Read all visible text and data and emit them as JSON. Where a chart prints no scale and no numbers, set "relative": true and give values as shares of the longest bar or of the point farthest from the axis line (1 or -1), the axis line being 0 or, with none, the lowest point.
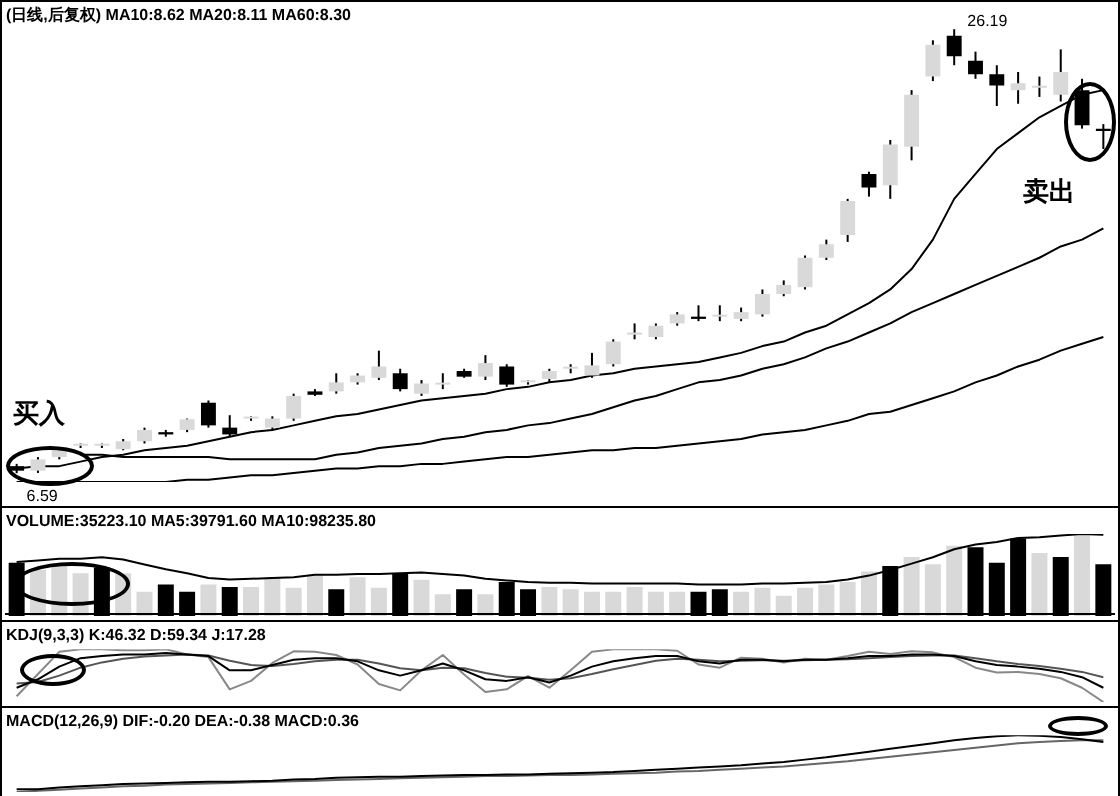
{
  "chart_data": [
    {
      "type": "candlestick",
      "title": "(日线,后复权) MA10:8.62 MA20:8.11 MA60:8.30",
      "tick_labels": false,
      "categories": [
        null,
        null,
        null,
        null,
        null,
        null,
        null,
        null,
        null,
        null,
        null,
        null,
        null,
        null,
        null,
        null,
        null,
        null,
        null,
        null,
        null,
        null,
        null,
        null,
        null,
        null,
        null,
        null,
        null,
        null,
        null,
        null,
        null,
        null,
        null,
        null,
        null,
        null,
        null,
        null,
        null,
        null,
        null,
        null,
        null,
        null,
        null,
        null,
        null,
        null,
        null,
        null
      ],
      "ohlc": [
        [
          6.9,
          7.0,
          6.59,
          6.7
        ],
        [
          6.7,
          7.3,
          6.6,
          7.2
        ],
        [
          7.3,
          7.7,
          7.2,
          7.6
        ],
        [
          7.8,
          7.9,
          7.7,
          7.8
        ],
        [
          7.8,
          7.9,
          7.7,
          7.85
        ],
        [
          7.65,
          8.1,
          7.6,
          8.0
        ],
        [
          8.0,
          8.6,
          7.9,
          8.5
        ],
        [
          8.4,
          8.5,
          8.2,
          8.3
        ],
        [
          8.5,
          9.0,
          8.4,
          8.97
        ],
        [
          9.7,
          9.8,
          8.6,
          8.7
        ],
        [
          8.6,
          9.15,
          8.2,
          8.3
        ],
        [
          9.0,
          9.1,
          8.9,
          9.0
        ],
        [
          8.6,
          9.1,
          8.5,
          9.0
        ],
        [
          9.0,
          10.1,
          8.9,
          10.0
        ],
        [
          10.2,
          10.3,
          10.0,
          10.05
        ],
        [
          10.2,
          11.0,
          10.1,
          10.6
        ],
        [
          10.6,
          11.0,
          10.5,
          10.9
        ],
        [
          10.8,
          12.0,
          10.7,
          11.3
        ],
        [
          11.0,
          11.2,
          10.2,
          10.3
        ],
        [
          10.1,
          10.7,
          10.0,
          10.55
        ],
        [
          10.5,
          11.0,
          10.3,
          10.5
        ],
        [
          11.1,
          11.2,
          10.8,
          10.85
        ],
        [
          10.85,
          11.8,
          10.7,
          11.45
        ],
        [
          11.3,
          11.4,
          10.4,
          10.5
        ],
        [
          10.6,
          10.7,
          10.5,
          10.6
        ],
        [
          10.75,
          11.2,
          10.6,
          11.1
        ],
        [
          11.2,
          11.4,
          11.0,
          11.25
        ],
        [
          10.9,
          11.9,
          10.8,
          11.35
        ],
        [
          11.4,
          12.5,
          11.3,
          12.4
        ],
        [
          12.7,
          13.2,
          12.5,
          12.8
        ],
        [
          12.6,
          13.2,
          12.5,
          13.1
        ],
        [
          13.2,
          13.7,
          13.1,
          13.6
        ],
        [
          13.5,
          14.0,
          13.3,
          13.4
        ],
        [
          13.5,
          14.0,
          13.3,
          13.55
        ],
        [
          13.4,
          13.9,
          13.3,
          13.7
        ],
        [
          13.6,
          14.7,
          13.5,
          14.5
        ],
        [
          14.5,
          15.1,
          14.4,
          14.9
        ],
        [
          14.8,
          16.2,
          14.7,
          16.1
        ],
        [
          16.1,
          16.9,
          16.0,
          16.7
        ],
        [
          17.1,
          18.7,
          16.8,
          18.6
        ],
        [
          19.8,
          19.9,
          18.8,
          19.2
        ],
        [
          19.3,
          21.3,
          18.7,
          21.1
        ],
        [
          21.0,
          23.5,
          20.4,
          23.3
        ],
        [
          24.1,
          25.7,
          23.9,
          25.5
        ],
        [
          25.9,
          26.19,
          24.6,
          25.0
        ],
        [
          24.8,
          25.2,
          24.0,
          24.2
        ],
        [
          24.2,
          24.6,
          22.8,
          23.7
        ],
        [
          23.5,
          24.3,
          22.9,
          23.8
        ],
        [
          23.6,
          24.1,
          23.2,
          23.6
        ],
        [
          23.3,
          25.3,
          23.0,
          24.3
        ],
        [
          23.5,
          24.0,
          21.8,
          21.95
        ],
        [
          21.8,
          22.0,
          20.9,
          21.7
        ]
      ],
      "colors": [
        "#000000",
        "#d9d9d9",
        "#d9d9d9",
        "#d9d9d9",
        "#d9d9d9",
        "#d9d9d9",
        "#d9d9d9",
        "#000000",
        "#d9d9d9",
        "#000000",
        "#000000",
        "#d9d9d9",
        "#d9d9d9",
        "#d9d9d9",
        "#000000",
        "#d9d9d9",
        "#d9d9d9",
        "#d9d9d9",
        "#000000",
        "#d9d9d9",
        "#d9d9d9",
        "#000000",
        "#d9d9d9",
        "#000000",
        "#d9d9d9",
        "#d9d9d9",
        "#d9d9d9",
        "#d9d9d9",
        "#d9d9d9",
        "#d9d9d9",
        "#d9d9d9",
        "#d9d9d9",
        "#000000",
        "#d9d9d9",
        "#d9d9d9",
        "#d9d9d9",
        "#d9d9d9",
        "#d9d9d9",
        "#d9d9d9",
        "#d9d9d9",
        "#000000",
        "#d9d9d9",
        "#d9d9d9",
        "#d9d9d9",
        "#000000",
        "#000000",
        "#000000",
        "#d9d9d9",
        "#d9d9d9",
        "#d9d9d9",
        "#000000",
        "#000000"
      ],
      "series": [
        {
          "type": "line",
          "color": "#000000",
          "values": [
            6.8,
            6.9,
            6.9,
            7.1,
            7.3,
            7.4,
            7.6,
            7.7,
            7.8,
            8.0,
            8.2,
            8.4,
            8.5,
            8.7,
            8.9,
            9.1,
            9.2,
            9.4,
            9.6,
            9.8,
            9.9,
            10.0,
            10.1,
            10.3,
            10.4,
            10.6,
            10.7,
            10.9,
            11.0,
            11.2,
            11.3,
            11.4,
            11.5,
            11.7,
            11.9,
            12.2,
            12.4,
            12.8,
            13.1,
            13.6,
            14.1,
            14.7,
            15.6,
            16.9,
            18.7,
            19.8,
            20.9,
            21.6,
            22.3,
            22.8,
            23.3,
            23.5
          ]
        },
        {
          "type": "line",
          "color": "#000000",
          "values": [
            null,
            null,
            null,
            7.4,
            7.4,
            7.3,
            7.3,
            7.3,
            7.3,
            7.3,
            7.2,
            7.2,
            7.2,
            7.2,
            7.2,
            7.4,
            7.5,
            7.7,
            7.8,
            7.9,
            8.1,
            8.2,
            8.4,
            8.5,
            8.7,
            8.8,
            9.0,
            9.2,
            9.5,
            9.8,
            10.0,
            10.3,
            10.6,
            10.7,
            10.9,
            11.2,
            11.4,
            11.7,
            12.1,
            12.4,
            12.8,
            13.2,
            13.7,
            14.1,
            14.5,
            14.9,
            15.3,
            15.7,
            16.1,
            16.6,
            16.9,
            17.4
          ]
        },
        {
          "type": "line",
          "color": "#000000",
          "values": [
            6.2,
            6.2,
            6.2,
            6.2,
            6.2,
            6.2,
            6.2,
            6.2,
            6.3,
            6.3,
            6.4,
            6.5,
            6.5,
            6.6,
            6.7,
            6.8,
            6.8,
            6.9,
            6.9,
            7.0,
            7.0,
            7.1,
            7.2,
            7.3,
            7.3,
            7.4,
            7.5,
            7.6,
            7.6,
            7.7,
            7.7,
            7.8,
            7.9,
            8.0,
            8.1,
            8.3,
            8.4,
            8.5,
            8.7,
            8.9,
            9.2,
            9.3,
            9.6,
            9.9,
            10.2,
            10.6,
            10.9,
            11.3,
            11.6,
            12.0,
            12.3,
            12.6
          ]
        }
      ],
      "annotations": [
        "26.19",
        "6.59",
        "买入",
        "卖出"
      ]
    },
    {
      "type": "bar",
      "title": "VOLUME:35223.10 MA5:39791.60 MA10:98235.80",
      "relative": true,
      "categories": [
        null,
        null,
        null,
        null,
        null,
        null,
        null,
        null,
        null,
        null,
        null,
        null,
        null,
        null,
        null,
        null,
        null,
        null,
        null,
        null,
        null,
        null,
        null,
        null,
        null,
        null,
        null,
        null,
        null,
        null,
        null,
        null,
        null,
        null,
        null,
        null,
        null,
        null,
        null,
        null,
        null,
        null,
        null,
        null,
        null,
        null,
        null,
        null,
        null,
        null,
        null,
        null
      ],
      "colors": [
        "#000000",
        "#d9d9d9",
        "#d9d9d9",
        "#d9d9d9",
        "#000000",
        "#d9d9d9",
        "#d9d9d9",
        "#000000",
        "#000000",
        "#d9d9d9",
        "#000000",
        "#d9d9d9",
        "#d9d9d9",
        "#d9d9d9",
        "#d9d9d9",
        "#000000",
        "#d9d9d9",
        "#d9d9d9",
        "#000000",
        "#d9d9d9",
        "#d9d9d9",
        "#000000",
        "#d9d9d9",
        "#000000",
        "#000000",
        "#d9d9d9",
        "#d9d9d9",
        "#d9d9d9",
        "#d9d9d9",
        "#d9d9d9",
        "#d9d9d9",
        "#d9d9d9",
        "#000000",
        "#000000",
        "#d9d9d9",
        "#d9d9d9",
        "#d9d9d9",
        "#d9d9d9",
        "#d9d9d9",
        "#d9d9d9",
        "#d9d9d9",
        "#000000",
        "#d9d9d9",
        "#d9d9d9",
        "#d9d9d9",
        "#000000",
        "#000000",
        "#000000",
        "#d9d9d9",
        "#000000",
        "#d9d9d9",
        "#000000"
      ],
      "values": [
        0.66,
        0.57,
        0.62,
        0.53,
        0.6,
        0.53,
        0.3,
        0.39,
        0.3,
        0.39,
        0.36,
        0.36,
        0.48,
        0.35,
        0.51,
        0.33,
        0.48,
        0.35,
        0.53,
        0.45,
        0.27,
        0.33,
        0.27,
        0.42,
        0.33,
        0.36,
        0.33,
        0.3,
        0.3,
        0.36,
        0.3,
        0.3,
        0.3,
        0.33,
        0.3,
        0.35,
        0.25,
        0.35,
        0.39,
        0.42,
        0.55,
        0.62,
        0.73,
        0.64,
        0.87,
        0.85,
        0.66,
        0.96,
        0.78,
        0.73,
        1,
        0.64
      ]
    },
    {
      "type": "line",
      "relative": true,
      "categories": [
        null,
        null,
        null,
        null,
        null,
        null,
        null,
        null,
        null,
        null,
        null,
        null,
        null,
        null,
        null,
        null,
        null,
        null,
        null,
        null,
        null,
        null,
        null,
        null,
        null,
        null,
        null,
        null,
        null,
        null,
        null,
        null,
        null,
        null,
        null,
        null,
        null,
        null,
        null,
        null,
        null,
        null,
        null,
        null,
        null,
        null,
        null,
        null,
        null,
        null,
        null,
        null
      ],
      "series": [
        {
          "color": "#000000",
          "values": [
            0.65,
            0.67,
            0.69,
            0.69,
            0.71,
            0.68,
            0.62,
            0.56,
            0.51,
            0.45,
            0.43,
            0.44,
            0.45,
            0.46,
            0.49,
            0.49,
            0.5,
            0.5,
            0.51,
            0.52,
            0.5,
            0.48,
            0.44,
            0.42,
            0.4,
            0.39,
            0.39,
            0.38,
            0.38,
            0.38,
            0.38,
            0.38,
            0.37,
            0.37,
            0.37,
            0.38,
            0.38,
            0.39,
            0.4,
            0.43,
            0.48,
            0.55,
            0.63,
            0.71,
            0.81,
            0.87,
            0.9,
            0.95,
            0.96,
            0.98,
            1,
            0.99
          ]
        }
      ]
    },
    {
      "type": "line",
      "title": "KDJ(9,3,3) K:46.32 D:59.34 J:17.28",
      "relative": true,
      "categories": [
        null,
        null,
        null,
        null,
        null,
        null,
        null,
        null,
        null,
        null,
        null,
        null,
        null,
        null,
        null,
        null,
        null,
        null,
        null,
        null,
        null,
        null,
        null,
        null,
        null,
        null,
        null,
        null,
        null,
        null,
        null,
        null,
        null,
        null,
        null,
        null,
        null,
        null,
        null,
        null,
        null,
        null,
        null,
        null,
        null,
        null,
        null,
        null,
        null,
        null,
        null,
        null
      ],
      "series": [
        {
          "color": "#000000",
          "values": [
            0.27,
            0.43,
            0.67,
            0.83,
            0.87,
            0.9,
            0.9,
            0.93,
            0.9,
            0.87,
            0.6,
            0.6,
            0.7,
            0.8,
            0.83,
            0.83,
            0.77,
            0.6,
            0.5,
            0.6,
            0.73,
            0.6,
            0.43,
            0.4,
            0.47,
            0.37,
            0.5,
            0.67,
            0.77,
            0.83,
            0.87,
            0.87,
            0.77,
            0.73,
            0.8,
            0.8,
            0.77,
            0.8,
            0.8,
            0.83,
            0.87,
            0.87,
            0.9,
            0.9,
            0.87,
            0.77,
            0.7,
            0.67,
            0.63,
            0.57,
            0.47,
            0.27
          ]
        },
        {
          "color": "#555555",
          "values": [
            0.35,
            0.38,
            0.5,
            0.65,
            0.75,
            0.82,
            0.86,
            0.88,
            0.9,
            0.88,
            0.78,
            0.7,
            0.68,
            0.72,
            0.77,
            0.8,
            0.8,
            0.73,
            0.64,
            0.6,
            0.65,
            0.64,
            0.55,
            0.48,
            0.46,
            0.42,
            0.45,
            0.53,
            0.62,
            0.7,
            0.78,
            0.82,
            0.8,
            0.77,
            0.78,
            0.79,
            0.78,
            0.79,
            0.8,
            0.81,
            0.83,
            0.85,
            0.87,
            0.88,
            0.88,
            0.83,
            0.77,
            0.72,
            0.68,
            0.63,
            0.57,
            0.47
          ]
        },
        {
          "color": "#888888",
          "values": [
            0.11,
            0.53,
            0.95,
            1,
            1,
            0.98,
            0.98,
            1,
            0.9,
            0.85,
            0.24,
            0.4,
            0.74,
            0.96,
            0.95,
            0.89,
            0.71,
            0.34,
            0.22,
            0.6,
            0.89,
            0.52,
            0.19,
            0.24,
            0.49,
            0.27,
            0.6,
            0.95,
            1,
            1,
            1,
            0.97,
            0.71,
            0.65,
            0.84,
            0.82,
            0.75,
            0.82,
            0.8,
            0.87,
            0.95,
            0.91,
            0.96,
            0.94,
            0.85,
            0.65,
            0.56,
            0.57,
            0.53,
            0.45,
            0.27,
            0
          ]
        }
      ]
    },
    {
      "type": "line",
      "title": "MACD(12,26,9) DIF:-0.20 DEA:-0.38 MACD:0.36",
      "relative": true,
      "categories": [
        null,
        null,
        null,
        null,
        null,
        null,
        null,
        null,
        null,
        null,
        null,
        null,
        null,
        null,
        null,
        null,
        null,
        null,
        null,
        null,
        null,
        null,
        null,
        null,
        null,
        null,
        null,
        null,
        null,
        null,
        null,
        null,
        null,
        null,
        null,
        null,
        null,
        null,
        null,
        null,
        null,
        null,
        null,
        null,
        null,
        null,
        null,
        null,
        null,
        null,
        null,
        null
      ],
      "series": [
        {
          "color": "#000000",
          "values": [
            0.05,
            0.05,
            0.08,
            0.1,
            0.12,
            0.14,
            0.15,
            0.16,
            0.17,
            0.18,
            0.18,
            0.19,
            0.2,
            0.22,
            0.23,
            0.25,
            0.26,
            0.27,
            0.27,
            0.28,
            0.29,
            0.3,
            0.3,
            0.31,
            0.31,
            0.32,
            0.33,
            0.34,
            0.35,
            0.37,
            0.39,
            0.41,
            0.43,
            0.45,
            0.47,
            0.5,
            0.53,
            0.57,
            0.61,
            0.66,
            0.71,
            0.76,
            0.81,
            0.86,
            0.91,
            0.95,
            0.98,
            1,
            0.99,
            0.97,
            0.93,
            0.88
          ]
        },
        {
          "color": "#666666",
          "values": [
            0,
            0.02,
            0.04,
            0.06,
            0.08,
            0.1,
            0.11,
            0.13,
            0.14,
            0.15,
            0.16,
            0.17,
            0.18,
            0.19,
            0.2,
            0.21,
            0.22,
            0.23,
            0.24,
            0.25,
            0.26,
            0.27,
            0.28,
            0.28,
            0.29,
            0.3,
            0.3,
            0.31,
            0.32,
            0.33,
            0.34,
            0.36,
            0.37,
            0.39,
            0.41,
            0.43,
            0.45,
            0.48,
            0.51,
            0.54,
            0.58,
            0.62,
            0.66,
            0.7,
            0.74,
            0.78,
            0.82,
            0.86,
            0.88,
            0.9,
            0.91,
            0.91
          ]
        }
      ]
    }
  ]
}
